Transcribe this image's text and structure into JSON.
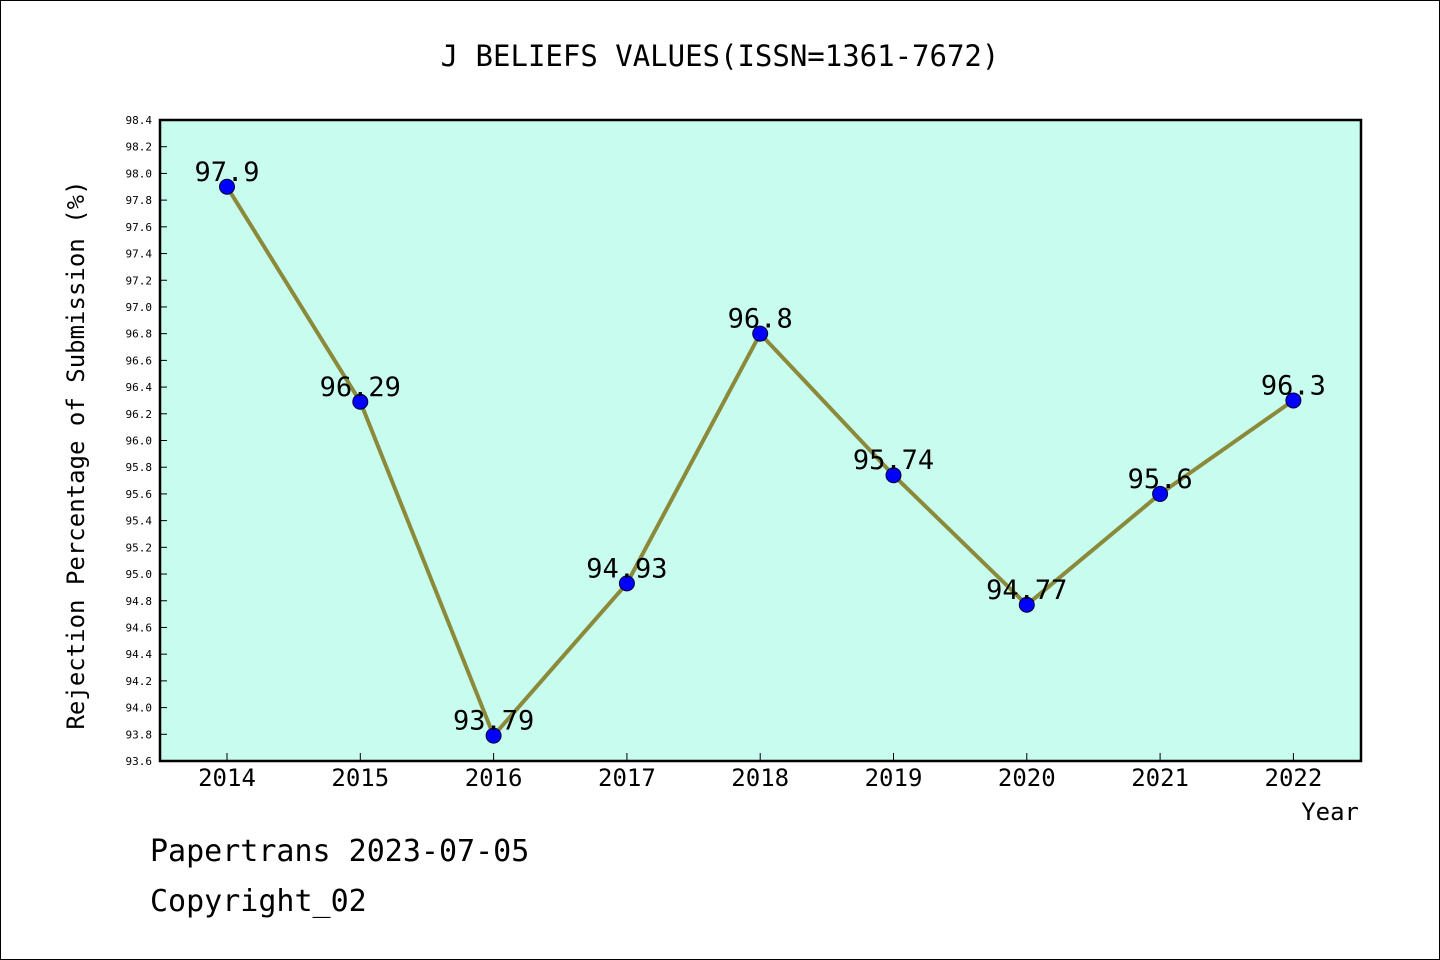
{
  "chart_data": {
    "type": "line",
    "title": "J BELIEFS VALUES(ISSN=1361-7672)",
    "xlabel": "Year",
    "ylabel": "Rejection Percentage of Submission (%)",
    "categories": [
      "2014",
      "2015",
      "2016",
      "2017",
      "2018",
      "2019",
      "2020",
      "2021",
      "2022"
    ],
    "values": [
      97.9,
      96.29,
      93.79,
      94.93,
      96.8,
      95.74,
      94.77,
      95.6,
      96.3
    ],
    "data_labels": [
      "97.9",
      "96.29",
      "93.79",
      "94.93",
      "96.8",
      "95.74",
      "94.77",
      "95.6",
      "96.3"
    ],
    "ylim": [
      93.6,
      98.4
    ],
    "y_ticks": [
      "93.6",
      "93.8",
      "94.0",
      "94.2",
      "94.4",
      "94.6",
      "94.8",
      "95.0",
      "95.2",
      "95.4",
      "95.6",
      "95.8",
      "96.0",
      "96.2",
      "96.4",
      "96.6",
      "96.8",
      "97.0",
      "97.2",
      "97.4",
      "97.6",
      "97.8",
      "98.0",
      "98.2",
      "98.4"
    ],
    "grid": false,
    "legend": "none",
    "colors": {
      "plot_background": "#c8fcee",
      "line": "#8b8a3a",
      "marker": "#0000ff"
    }
  },
  "footer": {
    "date_line": "Papertrans 2023-07-05",
    "copyright_line": "Copyright_02"
  }
}
